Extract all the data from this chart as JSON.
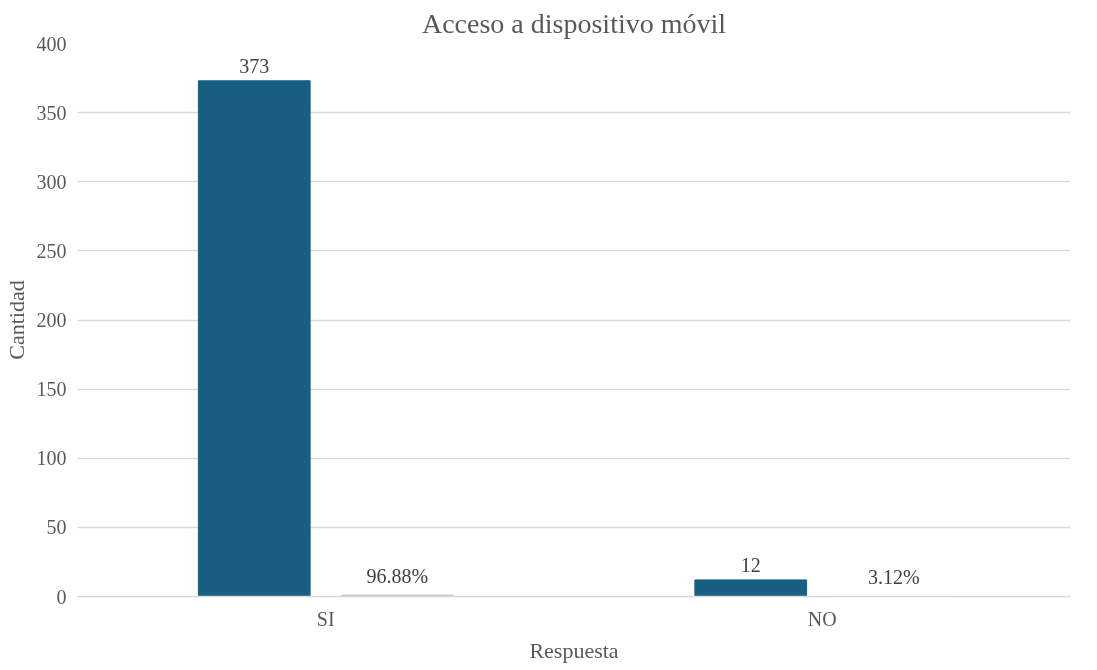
{
  "chart_data": {
    "type": "bar",
    "title": "Acceso a dispositivo móvil",
    "xlabel": "Respuesta",
    "ylabel": "Cantidad",
    "categories": [
      "SI",
      "NO"
    ],
    "series": [
      {
        "color": "#175e80",
        "values": [
          373,
          12
        ],
        "value_labels": [
          "373",
          "12"
        ]
      },
      {
        "color": "#c9b8b0",
        "values": [
          0.9688,
          0.0312
        ],
        "value_labels": [
          "96.88%",
          "3.12%"
        ]
      }
    ],
    "ylim": [
      0,
      400
    ],
    "yticks": [
      0,
      50,
      100,
      150,
      200,
      250,
      300,
      350,
      400
    ],
    "grid": "y"
  }
}
